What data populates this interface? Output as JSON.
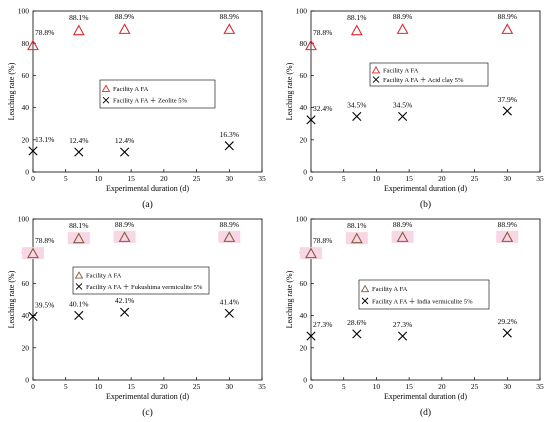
{
  "chart_data": [
    {
      "type": "scatter",
      "panel_label": "(a)",
      "xlabel": "Experimental duration (d)",
      "ylabel": "Leaching rate (%)",
      "xlim": [
        0,
        35
      ],
      "ylim": [
        0,
        100
      ],
      "xticks": [
        "0",
        "5",
        "10",
        "15",
        "20",
        "25",
        "30",
        "35"
      ],
      "yticks": [
        "0",
        "20",
        "40",
        "60",
        "80",
        "100"
      ],
      "marker_style": "red-triangle",
      "legend_position": "center-right",
      "series": [
        {
          "name": "Facility A  FA",
          "marker": "triangle",
          "color": "#e0292f",
          "x": [
            0,
            7,
            14,
            30
          ],
          "y": [
            78.8,
            88.1,
            88.9,
            88.9
          ],
          "labels": [
            "78.8%",
            "88.1%",
            "88.9%",
            "88.9%"
          ]
        },
        {
          "name": "Facility A  FA ＋ Zeolite 5%",
          "marker": "x",
          "color": "#000000",
          "x": [
            0,
            7,
            14,
            30
          ],
          "y": [
            13.1,
            12.4,
            12.4,
            16.3
          ],
          "labels": [
            "13.1%",
            "12.4%",
            "12.4%",
            "16.3%"
          ]
        }
      ]
    },
    {
      "type": "scatter",
      "panel_label": "(b)",
      "xlabel": "Experimental duration (d)",
      "ylabel": "Leaching rate (%)",
      "xlim": [
        0,
        35
      ],
      "ylim": [
        0,
        100
      ],
      "xticks": [
        "0",
        "5",
        "10",
        "15",
        "20",
        "25",
        "30",
        "35"
      ],
      "yticks": [
        "0",
        "20",
        "40",
        "60",
        "80",
        "100"
      ],
      "marker_style": "red-triangle",
      "legend_position": "center-right",
      "series": [
        {
          "name": "Facility A  FA",
          "marker": "triangle",
          "color": "#e0292f",
          "x": [
            0,
            7,
            14,
            30
          ],
          "y": [
            78.8,
            88.1,
            88.9,
            88.9
          ],
          "labels": [
            "78.8%",
            "88.1%",
            "88.9%",
            "88.9%"
          ]
        },
        {
          "name": "Facility A  FA ＋ Acid clay 5%",
          "marker": "x",
          "color": "#000000",
          "x": [
            0,
            7,
            14,
            30
          ],
          "y": [
            32.4,
            34.5,
            34.5,
            37.9
          ],
          "labels": [
            "32.4%",
            "34.5%",
            "34.5%",
            "37.9%"
          ]
        }
      ]
    },
    {
      "type": "scatter",
      "panel_label": "(c)",
      "xlabel": "Experimental duration (d)",
      "ylabel": "Leaching rate (%)",
      "xlim": [
        0,
        35
      ],
      "ylim": [
        0,
        100
      ],
      "xticks": [
        "0",
        "5",
        "10",
        "15",
        "20",
        "25",
        "30",
        "35"
      ],
      "yticks": [
        "0",
        "20",
        "40",
        "60",
        "80",
        "100"
      ],
      "marker_style": "brown-triangle-pink-highlight",
      "legend_position": "center-right",
      "series": [
        {
          "name": "Facility A  FA",
          "marker": "triangle",
          "color": "#8a5a3c",
          "x": [
            0,
            7,
            14,
            30
          ],
          "y": [
            78.8,
            88.1,
            88.9,
            88.9
          ],
          "labels": [
            "78.8%",
            "88.1%",
            "88.9%",
            "88.9%"
          ]
        },
        {
          "name": "Facility A  FA ＋ Fukushima vermiculite 5%",
          "marker": "x",
          "color": "#000000",
          "x": [
            0,
            7,
            14,
            30
          ],
          "y": [
            39.5,
            40.1,
            42.1,
            41.4
          ],
          "labels": [
            "39.5%",
            "40.1%",
            "42.1%",
            "41.4%"
          ]
        }
      ]
    },
    {
      "type": "scatter",
      "panel_label": "(d)",
      "xlabel": "Experimental duration (d)",
      "ylabel": "Leaching rate (%)",
      "xlim": [
        0,
        35
      ],
      "ylim": [
        0,
        100
      ],
      "xticks": [
        "0",
        "5",
        "10",
        "15",
        "20",
        "25",
        "30",
        "35"
      ],
      "yticks": [
        "0",
        "20",
        "40",
        "60",
        "80",
        "100"
      ],
      "marker_style": "brown-triangle-pink-highlight",
      "legend_position": "center-right",
      "series": [
        {
          "name": "Facility A  FA",
          "marker": "triangle",
          "color": "#8a5a3c",
          "x": [
            0,
            7,
            14,
            30
          ],
          "y": [
            78.8,
            88.1,
            88.9,
            88.9
          ],
          "labels": [
            "78.8%",
            "88.1%",
            "88.9%",
            "88.9%"
          ]
        },
        {
          "name": "Facility A  FA ＋ India vermiculite 5%",
          "marker": "x",
          "color": "#000000",
          "x": [
            0,
            7,
            14,
            30
          ],
          "y": [
            27.3,
            28.6,
            27.3,
            29.2
          ],
          "labels": [
            "27.3%",
            "28.6%",
            "27.3%",
            "29.2%"
          ]
        }
      ]
    }
  ],
  "colors": {
    "axis": "#000000",
    "highlight": "#f9d6e4"
  }
}
